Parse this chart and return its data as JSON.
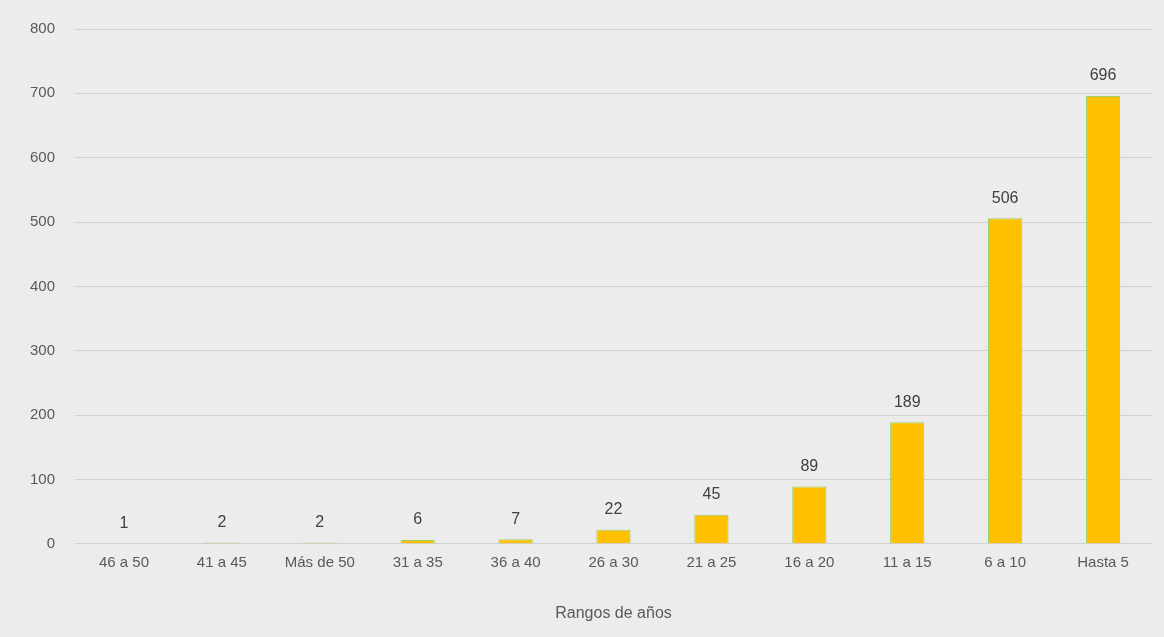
{
  "chart_data": {
    "type": "bar",
    "xlabel": "Rangos de años",
    "categories": [
      "46 a 50",
      "41 a 45",
      "Más de 50",
      "31 a 35",
      "36 a 40",
      "26 a 30",
      "21 a 25",
      "16 a 20",
      "11 a 15",
      "6 a 10",
      "Hasta 5"
    ],
    "series": [
      {
        "color": "#ffc000",
        "values": [
          1,
          2,
          2,
          6,
          7,
          22,
          45,
          89,
          189,
          506,
          696
        ]
      }
    ],
    "ylim": [
      0,
      800
    ],
    "yticks": [
      0,
      100,
      200,
      300,
      400,
      500,
      600,
      700,
      800
    ],
    "grid": "y",
    "data_labels": true,
    "legend": false
  }
}
